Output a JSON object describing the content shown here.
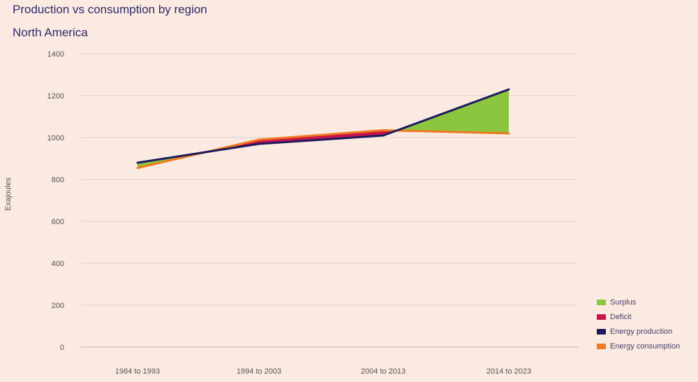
{
  "chart_data": {
    "type": "line",
    "title": "Production vs consumption by region",
    "subtitle": "North America",
    "ylabel": "Exajoules",
    "xlabel": "",
    "categories": [
      "1984 to 1993",
      "1994 to 2003",
      "2004 to 2013",
      "2014 to 2023"
    ],
    "ylim": [
      0,
      1400
    ],
    "yticks": [
      0,
      200,
      400,
      600,
      800,
      1000,
      1200,
      1400
    ],
    "grid": true,
    "legend_position": "bottom-right",
    "series": [
      {
        "name": "Energy production",
        "color": "#1c1a5e",
        "values": [
          880,
          970,
          1010,
          1230
        ]
      },
      {
        "name": "Energy consumption",
        "color": "#f07820",
        "values": [
          855,
          990,
          1035,
          1020
        ]
      }
    ],
    "fills": [
      {
        "name": "Surplus",
        "color": "#8cc63f"
      },
      {
        "name": "Deficit",
        "color": "#c8164b"
      }
    ]
  }
}
